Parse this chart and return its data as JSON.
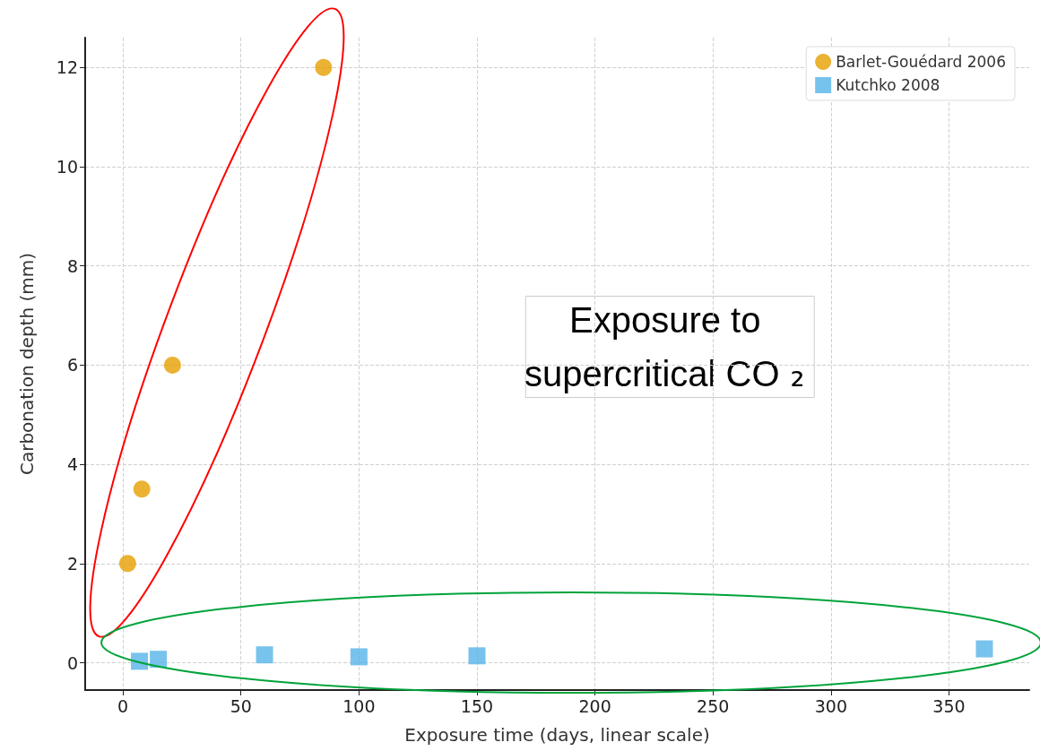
{
  "chart_data": {
    "type": "scatter",
    "xlabel": "Exposure time (days, linear scale)",
    "ylabel": "Carbonation depth (mm)",
    "xlim": [
      -16,
      384
    ],
    "xticks": [
      0,
      50,
      100,
      150,
      200,
      250,
      300,
      350
    ],
    "ylim": [
      -0.55,
      12.6
    ],
    "yticks": [
      0,
      2,
      4,
      6,
      8,
      10,
      12
    ],
    "grid": true,
    "legend": "top right",
    "series": [
      {
        "name": "Barlet-Gouédard 2006",
        "color": "#e69f00",
        "marker": "circle",
        "x": [
          2,
          8,
          21,
          85
        ],
        "values": [
          2,
          3.5,
          6,
          12
        ]
      },
      {
        "name": "Kutchko 2008",
        "color": "#56b4e9",
        "marker": "square",
        "x": [
          7,
          15,
          60,
          100,
          150,
          365
        ],
        "values": [
          0.03,
          0.07,
          0.16,
          0.12,
          0.14,
          0.28
        ]
      }
    ],
    "annotations": [
      "Exposure to supercritical CO₂"
    ]
  }
}
